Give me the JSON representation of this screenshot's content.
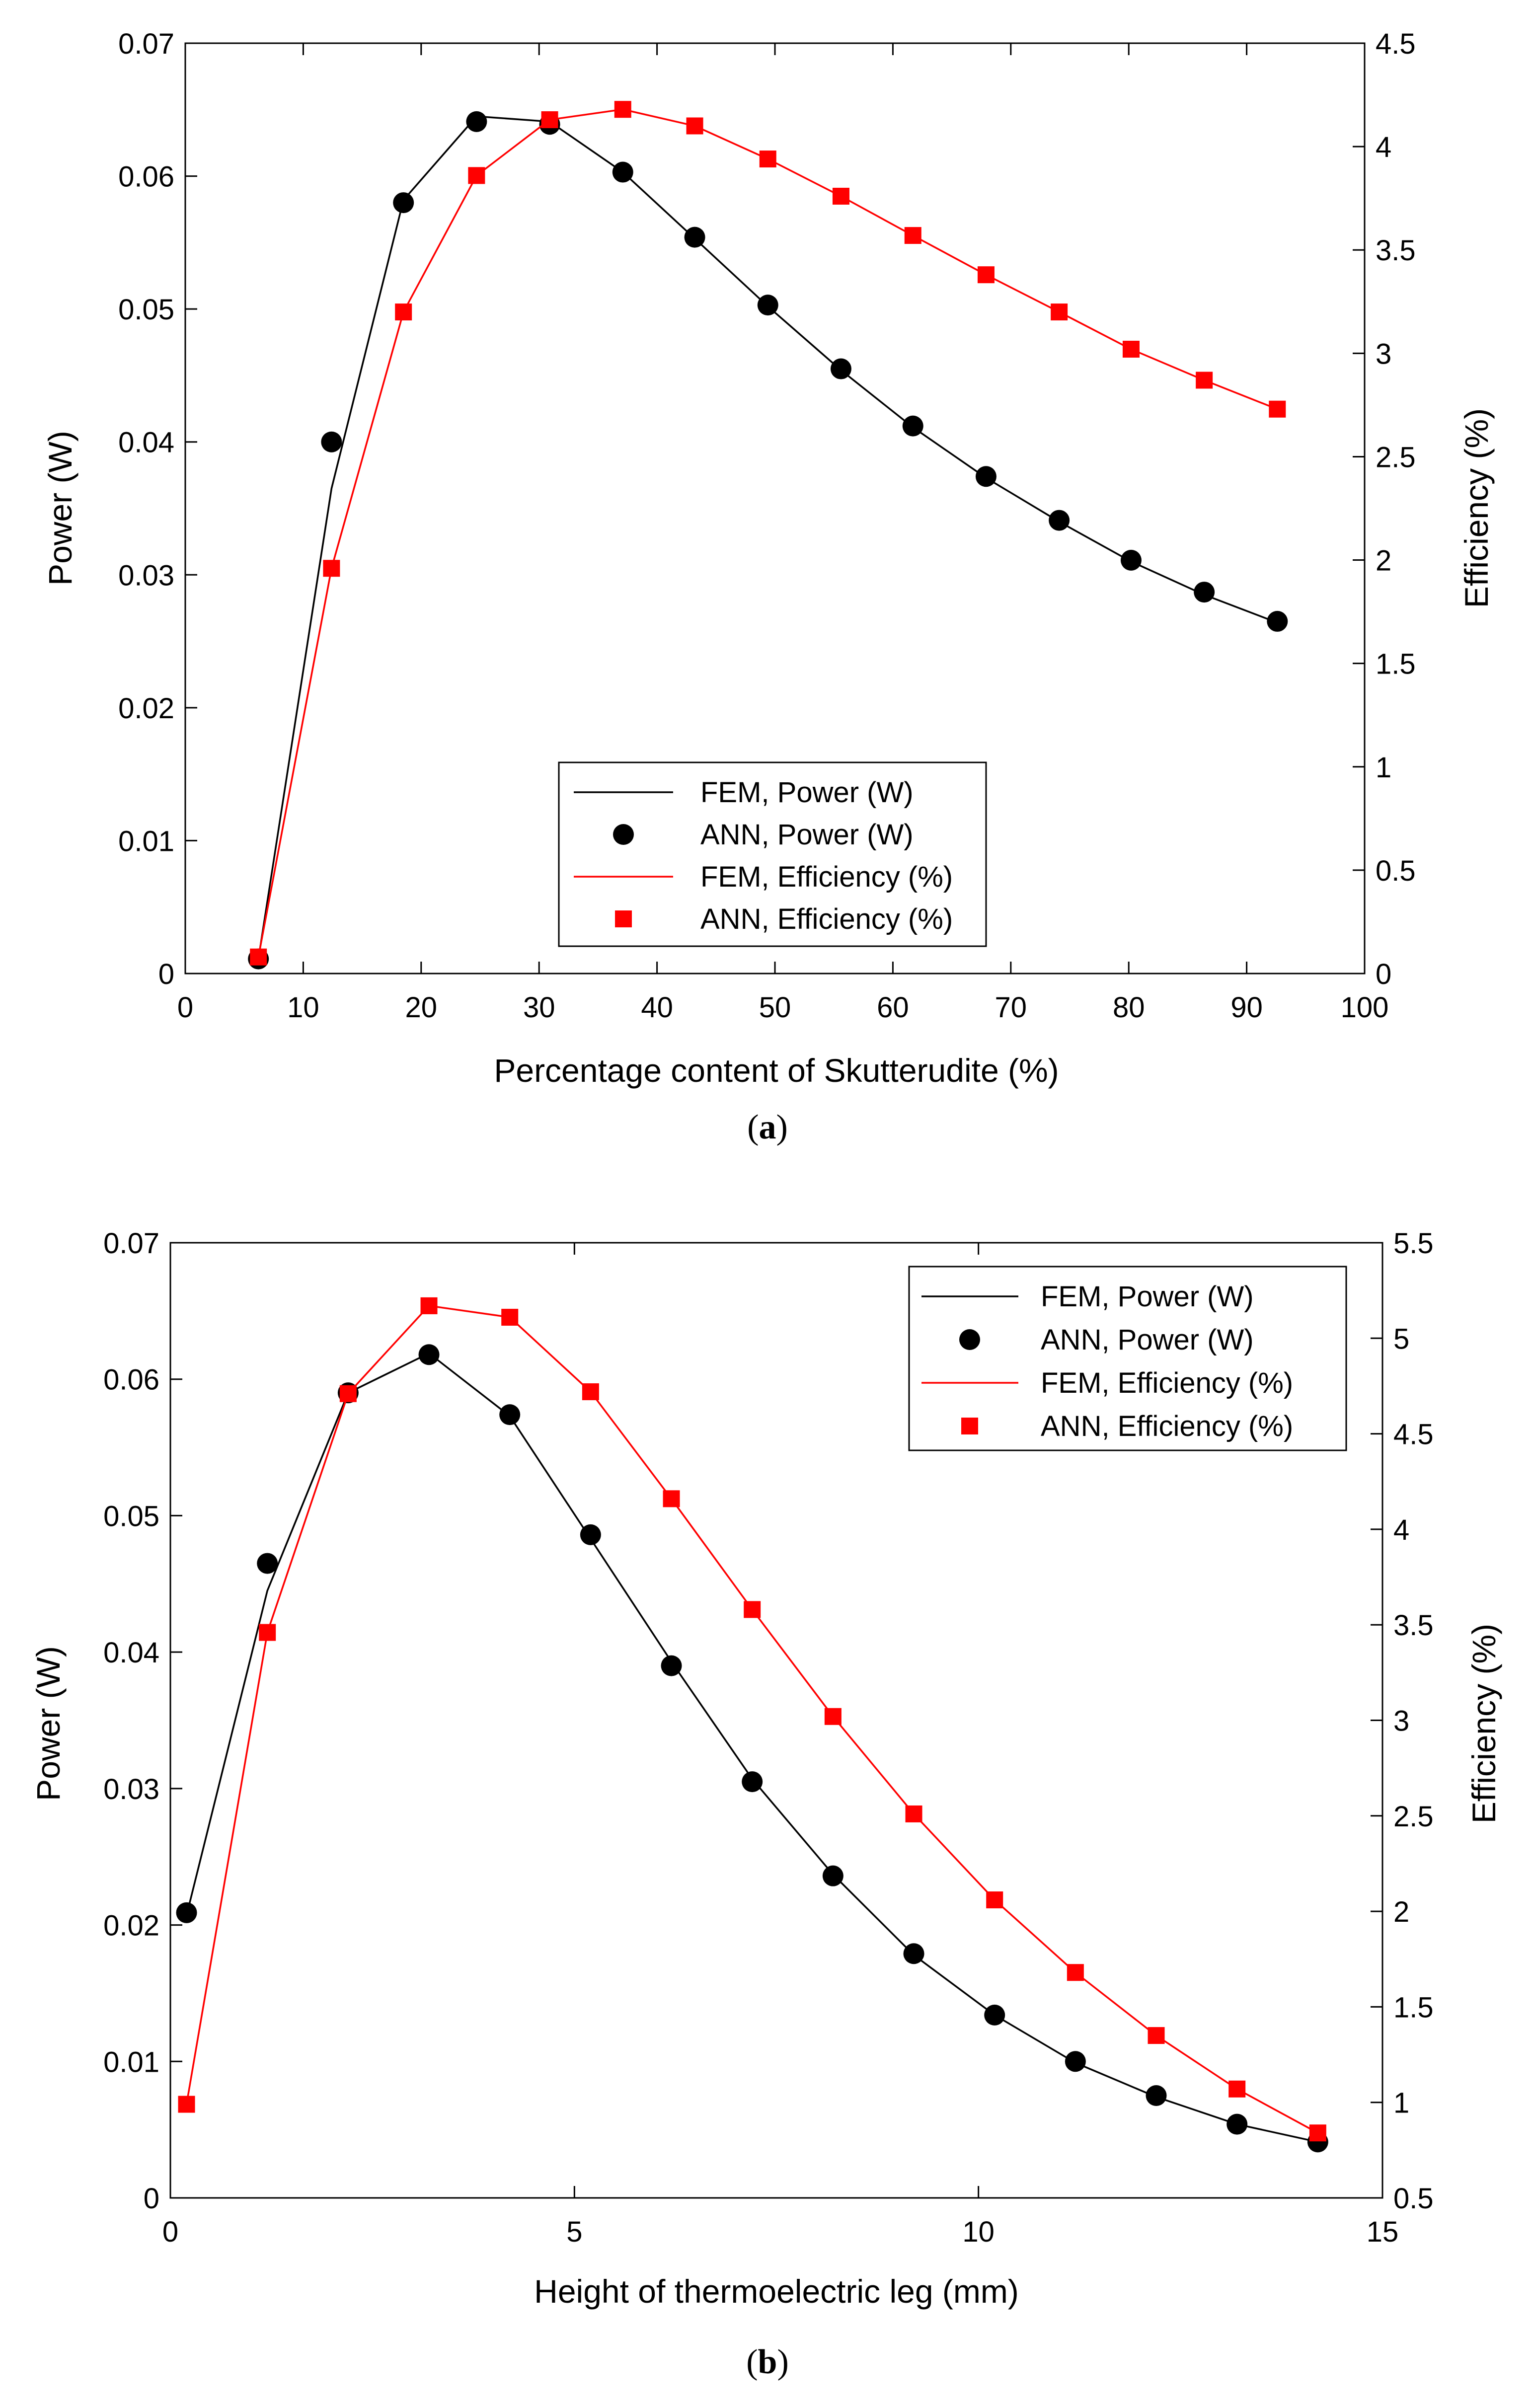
{
  "colors": {
    "power": "#000000",
    "efficiency": "#ff0000",
    "axes": "#000000",
    "background": "#ffffff"
  },
  "chart_data": [
    {
      "type": "line",
      "panel": "a",
      "caption": "(a)",
      "caption_parts": [
        "(",
        "a",
        ")"
      ],
      "xlabel": "Percentage content of Skutterudite (%)",
      "ylabel_left": "Power (W)",
      "ylabel_right": "Efficiency (%)",
      "xlim": [
        0,
        100
      ],
      "ylim_left": [
        0,
        0.07
      ],
      "ylim_right": [
        0,
        4.5
      ],
      "xticks": [
        0,
        10,
        20,
        30,
        40,
        50,
        60,
        70,
        80,
        90,
        100
      ],
      "xtick_labels": [
        "0",
        "10",
        "20",
        "30",
        "40",
        "50",
        "60",
        "70",
        "80",
        "90",
        "100"
      ],
      "yticks_left": [
        0,
        0.01,
        0.02,
        0.03,
        0.04,
        0.05,
        0.06,
        0.07
      ],
      "ytick_labels_left": [
        "0",
        "0.01",
        "0.02",
        "0.03",
        "0.04",
        "0.05",
        "0.06",
        "0.07"
      ],
      "yticks_right": [
        0,
        0.5,
        1,
        1.5,
        2,
        2.5,
        3,
        3.5,
        4,
        4.5
      ],
      "ytick_labels_right": [
        "0",
        "0.5",
        "1",
        "1.5",
        "2",
        "2.5",
        "3",
        "3.5",
        "4",
        "4.5"
      ],
      "legend_position": "bottom-center",
      "legend": [
        "FEM, Power (W)",
        "ANN, Power (W)",
        "FEM, Efficiency (%)",
        "ANN, Efficiency (%)"
      ],
      "series": [
        {
          "name": "FEM, Power (W)",
          "axis": "left",
          "style": "line",
          "color": "#000000",
          "x": [
            6.2,
            12.4,
            18.5,
            24.7,
            30.9,
            37.1,
            43.2,
            49.4,
            55.6,
            61.7,
            67.9,
            74.1,
            80.2,
            86.4,
            92.6
          ],
          "values": [
            0.0011,
            0.0365,
            0.0582,
            0.0645,
            0.0641,
            0.0603,
            0.0553,
            0.0502,
            0.0454,
            0.0411,
            0.0373,
            0.034,
            0.031,
            0.0285,
            0.0264
          ]
        },
        {
          "name": "ANN, Power (W)",
          "axis": "left",
          "style": "circle",
          "color": "#000000",
          "x": [
            6.2,
            12.4,
            18.5,
            24.7,
            30.9,
            37.1,
            43.2,
            49.4,
            55.6,
            61.7,
            67.9,
            74.1,
            80.2,
            86.4,
            92.6
          ],
          "values": [
            0.0011,
            0.04,
            0.058,
            0.0641,
            0.0639,
            0.0603,
            0.0554,
            0.0503,
            0.0455,
            0.0412,
            0.0374,
            0.0341,
            0.0311,
            0.0287,
            0.0265
          ]
        },
        {
          "name": "FEM, Efficiency (%)",
          "axis": "right",
          "style": "line",
          "color": "#ff0000",
          "x": [
            6.2,
            12.4,
            18.5,
            24.7,
            30.9,
            37.1,
            43.2,
            49.4,
            55.6,
            61.7,
            67.9,
            74.1,
            80.2,
            86.4,
            92.6
          ],
          "values": [
            0.08,
            1.96,
            3.2,
            3.86,
            4.13,
            4.18,
            4.1,
            3.94,
            3.76,
            3.57,
            3.38,
            3.2,
            3.02,
            2.87,
            2.73
          ]
        },
        {
          "name": "ANN, Efficiency (%)",
          "axis": "right",
          "style": "square",
          "color": "#ff0000",
          "x": [
            6.2,
            12.4,
            18.5,
            24.7,
            30.9,
            37.1,
            43.2,
            49.4,
            55.6,
            61.7,
            67.9,
            74.1,
            80.2,
            86.4,
            92.6
          ],
          "values": [
            0.08,
            1.96,
            3.2,
            3.86,
            4.13,
            4.18,
            4.1,
            3.94,
            3.76,
            3.57,
            3.38,
            3.2,
            3.02,
            2.87,
            2.73
          ]
        }
      ]
    },
    {
      "type": "line",
      "panel": "b",
      "caption": "(b)",
      "caption_parts": [
        "(",
        "b",
        ")"
      ],
      "xlabel": "Height of thermoelectric leg (mm)",
      "ylabel_left": "Power (W)",
      "ylabel_right": "Efficiency (%)",
      "xlim": [
        0,
        15
      ],
      "ylim_left": [
        0,
        0.07
      ],
      "ylim_right": [
        0.5,
        5.5
      ],
      "xticks": [
        0,
        5,
        10,
        15
      ],
      "xtick_labels": [
        "0",
        "5",
        "10",
        "15"
      ],
      "yticks_left": [
        0,
        0.01,
        0.02,
        0.03,
        0.04,
        0.05,
        0.06,
        0.07
      ],
      "ytick_labels_left": [
        "0",
        "0.01",
        "0.02",
        "0.03",
        "0.04",
        "0.05",
        "0.06",
        "0.07"
      ],
      "yticks_right": [
        0.5,
        1,
        1.5,
        2,
        2.5,
        3,
        3.5,
        4,
        4.5,
        5,
        5.5
      ],
      "ytick_labels_right": [
        "0.5",
        "1",
        "1.5",
        "2",
        "2.5",
        "3",
        "3.5",
        "4",
        "4.5",
        "5",
        "5.5"
      ],
      "legend_position": "top-right",
      "legend": [
        "FEM, Power (W)",
        "ANN, Power (W)",
        "FEM, Efficiency (%)",
        "ANN, Efficiency (%)"
      ],
      "series": [
        {
          "name": "FEM, Power (W)",
          "axis": "left",
          "style": "line",
          "color": "#000000",
          "x": [
            0.2,
            1.2,
            2.2,
            3.2,
            4.2,
            5.2,
            6.2,
            7.2,
            8.2,
            9.2,
            10.2,
            11.2,
            12.2,
            13.2,
            14.2
          ],
          "values": [
            0.0207,
            0.0445,
            0.059,
            0.0619,
            0.0573,
            0.0483,
            0.0393,
            0.0307,
            0.0237,
            0.0178,
            0.0134,
            0.0099,
            0.0074,
            0.0054,
            0.0041
          ]
        },
        {
          "name": "ANN, Power (W)",
          "axis": "left",
          "style": "circle",
          "color": "#000000",
          "x": [
            0.2,
            1.2,
            2.2,
            3.2,
            4.2,
            5.2,
            6.2,
            7.2,
            8.2,
            9.2,
            10.2,
            11.2,
            12.2,
            13.2,
            14.2
          ],
          "values": [
            0.0209,
            0.0465,
            0.059,
            0.0618,
            0.0574,
            0.0486,
            0.039,
            0.0305,
            0.0236,
            0.0179,
            0.0134,
            0.01,
            0.0075,
            0.0054,
            0.0041
          ]
        },
        {
          "name": "FEM, Efficiency (%)",
          "axis": "right",
          "style": "line",
          "color": "#ff0000",
          "x": [
            0.2,
            1.2,
            2.2,
            3.2,
            4.2,
            5.2,
            6.2,
            7.2,
            8.2,
            9.2,
            10.2,
            11.2,
            12.2,
            13.2,
            14.2
          ],
          "values": [
            0.99,
            3.46,
            4.71,
            5.17,
            5.11,
            4.72,
            4.16,
            3.58,
            3.02,
            2.51,
            2.06,
            1.68,
            1.35,
            1.07,
            0.84
          ]
        },
        {
          "name": "ANN, Efficiency (%)",
          "axis": "right",
          "style": "square",
          "color": "#ff0000",
          "x": [
            0.2,
            1.2,
            2.2,
            3.2,
            4.2,
            5.2,
            6.2,
            7.2,
            8.2,
            9.2,
            10.2,
            11.2,
            12.2,
            13.2,
            14.2
          ],
          "values": [
            0.99,
            3.46,
            4.71,
            5.17,
            5.11,
            4.72,
            4.16,
            3.58,
            3.02,
            2.51,
            2.06,
            1.68,
            1.35,
            1.07,
            0.84
          ]
        }
      ]
    }
  ]
}
